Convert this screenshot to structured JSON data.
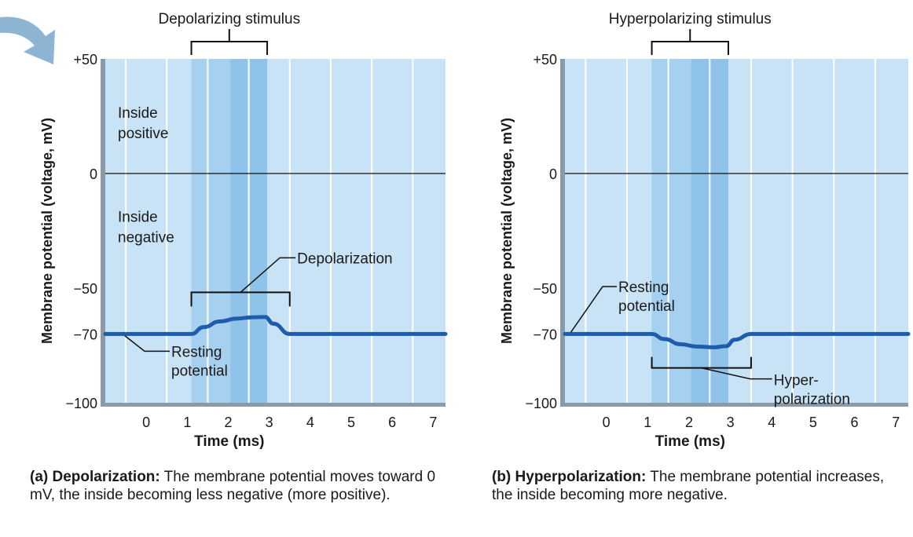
{
  "colors": {
    "plot_bg": "#c9e3f6",
    "stim_light": "#a6d0ef",
    "stim_dark": "#8fc3ea",
    "grid": "#ffffff",
    "axis": "#8a9aa6",
    "trace": "#1f5cab",
    "arrow": "#7aa7cc",
    "text": "#1a1a1a"
  },
  "icons": {
    "corner_arrow": "curved-arrow-icon"
  },
  "chart_data": [
    {
      "type": "line",
      "panel": "a",
      "title": "Depolarizing stimulus",
      "xlabel": "Time (ms)",
      "ylabel": "Membrane potential (voltage, mV)",
      "xlim": [
        -1,
        7.3
      ],
      "ylim": [
        -100,
        50
      ],
      "x_ticks": [
        0,
        1,
        2,
        3,
        4,
        5,
        6,
        7
      ],
      "y_ticks": [
        50,
        0,
        -50,
        -70,
        -100
      ],
      "y_tick_labels": [
        "+50",
        "0",
        "−50",
        "−70",
        "−100"
      ],
      "stimulus_range": [
        1.1,
        2.95
      ],
      "stimulus_split": 2.05,
      "series": [
        {
          "name": "Membrane potential",
          "x": [
            -1,
            1.1,
            1.4,
            1.8,
            2.2,
            2.6,
            2.9,
            3.1,
            3.5,
            7.3
          ],
          "y": [
            -70,
            -70,
            -67,
            -64.5,
            -63.3,
            -62.7,
            -62.6,
            -65.5,
            -70,
            -70
          ]
        }
      ],
      "labels": {
        "inside_positive": "Inside\npositive",
        "inside_negative": "Inside\nnegative",
        "change_label": "Depolarization",
        "resting_label": "Resting\npotential"
      },
      "change_range": [
        1.1,
        3.5
      ],
      "caption_head": "(a) Depolarization:",
      "caption_body": "The membrane potential moves toward 0 mV, the inside becoming less negative (more positive)."
    },
    {
      "type": "line",
      "panel": "b",
      "title": "Hyperpolarizing stimulus",
      "xlabel": "Time (ms)",
      "ylabel": "Membrane potential (voltage, mV)",
      "xlim": [
        -1,
        7.3
      ],
      "ylim": [
        -100,
        50
      ],
      "x_ticks": [
        0,
        1,
        2,
        3,
        4,
        5,
        6,
        7
      ],
      "y_ticks": [
        50,
        0,
        -50,
        -70,
        -100
      ],
      "y_tick_labels": [
        "+50",
        "0",
        "−50",
        "−70",
        "−100"
      ],
      "stimulus_range": [
        1.1,
        2.95
      ],
      "stimulus_split": 2.05,
      "series": [
        {
          "name": "Membrane potential",
          "x": [
            -1,
            1.1,
            1.4,
            1.8,
            2.2,
            2.6,
            2.9,
            3.1,
            3.5,
            7.3
          ],
          "y": [
            -70,
            -70,
            -72.2,
            -74.5,
            -75.5,
            -75.8,
            -75.3,
            -72.5,
            -70,
            -70
          ]
        }
      ],
      "labels": {
        "resting_label": "Resting\npotential",
        "change_label": "Hyper-\npolarization"
      },
      "change_range": [
        1.1,
        3.5
      ],
      "caption_head": "(b) Hyperpolarization:",
      "caption_body": "The membrane potential increases, the inside becoming more negative."
    }
  ]
}
